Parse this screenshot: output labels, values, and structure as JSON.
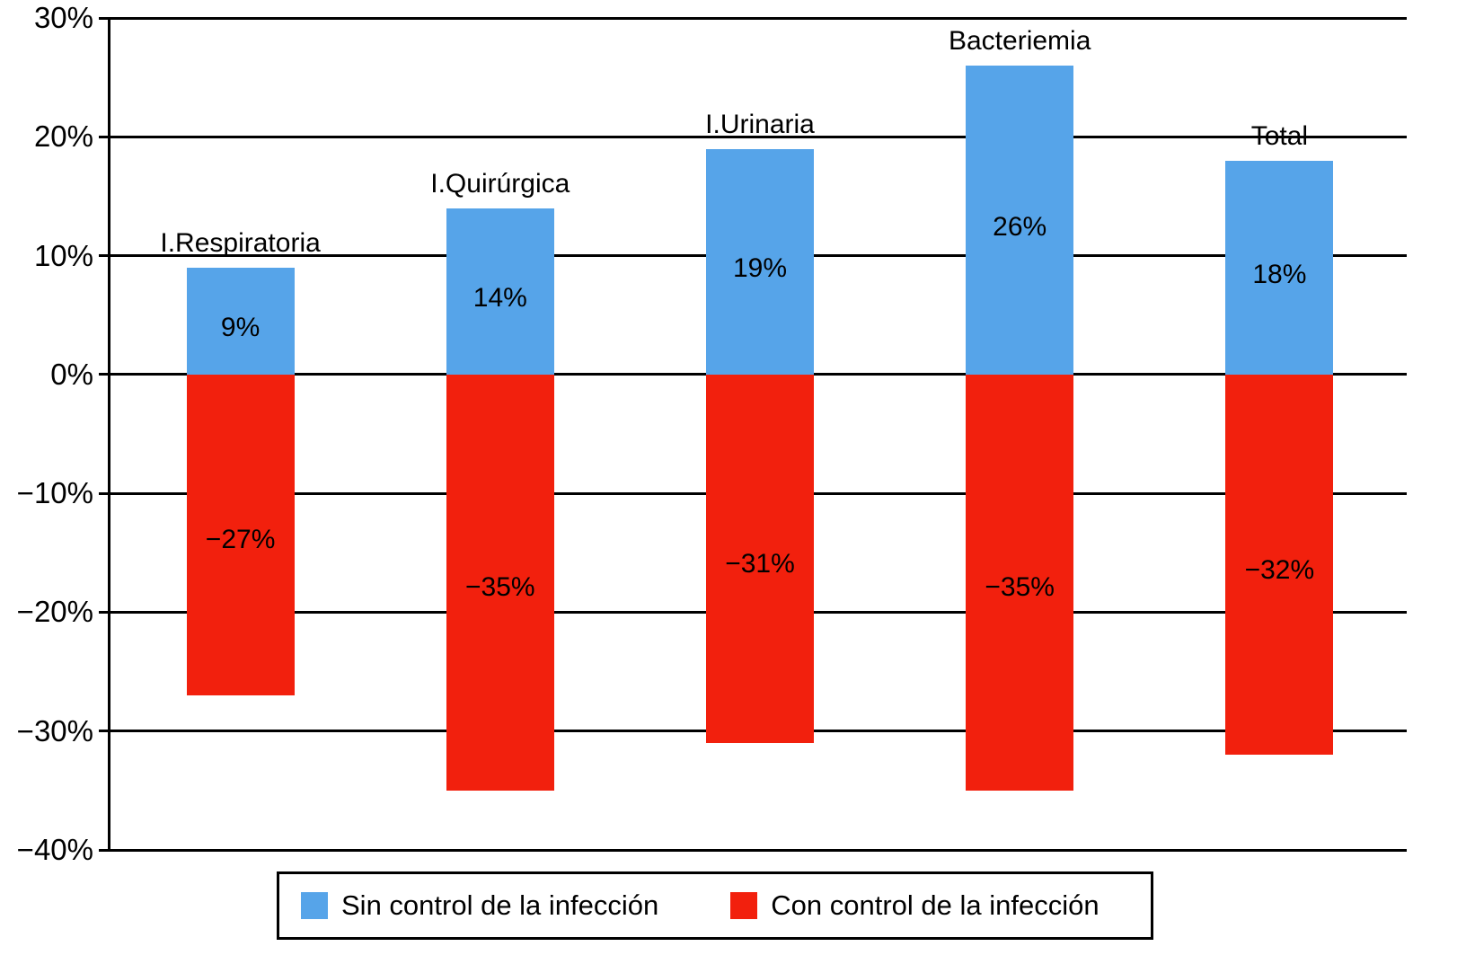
{
  "chart_data": {
    "type": "bar",
    "bar_kind": "diverging-stacked-columns",
    "title": "",
    "categories": [
      "I.Respiratoria",
      "I.Quirúrgica",
      "I.Urinaria",
      "Bacteriemia",
      "Total"
    ],
    "series": [
      {
        "name": "Sin control de la infección",
        "color": "#56a4e9",
        "values": [
          9,
          14,
          19,
          26,
          18
        ],
        "value_labels": [
          "9%",
          "14%",
          "19%",
          "26%",
          "18%"
        ]
      },
      {
        "name": "Con control de la infección",
        "color": "#f2200d",
        "values": [
          -27,
          -35,
          -31,
          -35,
          -32
        ],
        "value_labels": [
          "−27%",
          "−35%",
          "−31%",
          "−35%",
          "−32%"
        ]
      }
    ],
    "y_axis": {
      "min": -40,
      "max": 30,
      "step": 10,
      "ticks": [
        {
          "value": 30,
          "label": "30%"
        },
        {
          "value": 20,
          "label": "20%"
        },
        {
          "value": 10,
          "label": "10%"
        },
        {
          "value": 0,
          "label": "0%"
        },
        {
          "value": -10,
          "label": "−10%"
        },
        {
          "value": -20,
          "label": "−20%"
        },
        {
          "value": -30,
          "label": "−30%"
        },
        {
          "value": -40,
          "label": "−40%"
        }
      ]
    },
    "grid": true,
    "legend_position": "bottom",
    "background": "#ffffff",
    "axis_color": "#000000"
  }
}
